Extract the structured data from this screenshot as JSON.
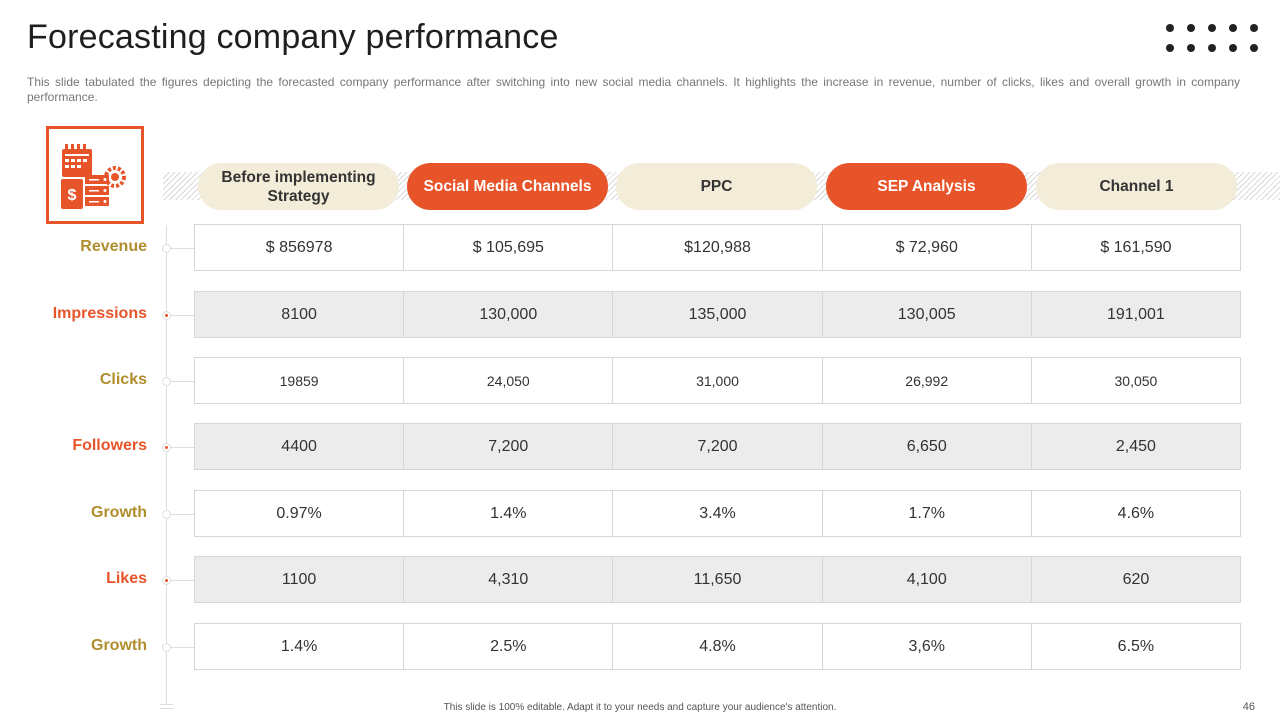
{
  "title": "Forecasting company performance",
  "description": "This slide tabulated the figures depicting the forecasted company performance  after switching into new social media channels. It highlights the increase in revenue,  number of clicks, likes and overall growth in company performance.",
  "icon": "finance-dashboard-icon",
  "columns": [
    {
      "label": "Before implementing Strategy",
      "style": "beige"
    },
    {
      "label": "Social Media Channels",
      "style": "orange"
    },
    {
      "label": "PPC",
      "style": "beige"
    },
    {
      "label": "SEP Analysis",
      "style": "orange"
    },
    {
      "label": "Channel 1",
      "style": "beige"
    }
  ],
  "rows": [
    {
      "label": "Revenue",
      "color": "gold",
      "values": [
        "$ 856978",
        "$ 105,695",
        "$120,988",
        "$ 72,960",
        "$ 161,590"
      ]
    },
    {
      "label": "Impressions",
      "color": "red",
      "values": [
        "8100",
        "130,000",
        "135,000",
        "130,005",
        "191,001"
      ]
    },
    {
      "label": "Clicks",
      "color": "gold",
      "values": [
        "19859",
        "24,050",
        "31,000",
        "26,992",
        "30,050"
      ]
    },
    {
      "label": "Followers",
      "color": "red",
      "values": [
        "4400",
        "7,200",
        "7,200",
        "6,650",
        "2,450"
      ]
    },
    {
      "label": "Growth",
      "color": "gold",
      "values": [
        "0.97%",
        "1.4%",
        "3.4%",
        "1.7%",
        "4.6%"
      ]
    },
    {
      "label": "Likes",
      "color": "red",
      "values": [
        "1100",
        "4,310",
        "11,650",
        "4,100",
        "620"
      ]
    },
    {
      "label": "Growth",
      "color": "gold",
      "values": [
        "1.4%",
        "2.5%",
        "4.8%",
        "3,6%",
        "6.5%"
      ]
    }
  ],
  "footer": "This slide is 100% editable. Adapt it to your needs and capture your audience's attention.",
  "page_number": "46",
  "colors": {
    "accent": "#e8542a",
    "gold": "#b08e2e",
    "beige": "#f2ecd8"
  }
}
